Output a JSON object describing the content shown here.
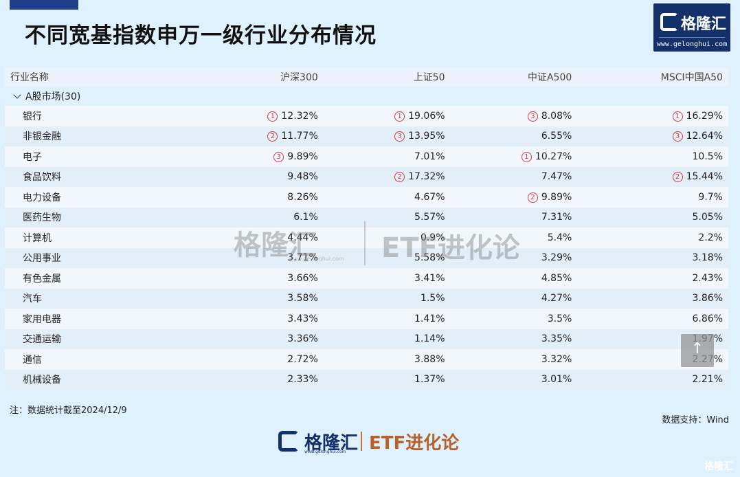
{
  "title": "不同宽基指数申万一级行业分布情况",
  "logo": {
    "name": "格隆汇",
    "url": "www.gelonghui.com"
  },
  "table": {
    "headers": [
      "行业名称",
      "沪深300",
      "上证50",
      "中证A500",
      "MSCI中国A50"
    ],
    "group": "A股市场(30)",
    "rows": [
      {
        "name": "银行",
        "cells": [
          {
            "rank": "1",
            "value": "12.32%"
          },
          {
            "rank": "1",
            "value": "19.06%"
          },
          {
            "rank": "3",
            "value": "8.08%"
          },
          {
            "rank": "1",
            "value": "16.29%"
          }
        ]
      },
      {
        "name": "非银金融",
        "cells": [
          {
            "rank": "2",
            "value": "11.77%"
          },
          {
            "rank": "3",
            "value": "13.95%"
          },
          {
            "rank": "",
            "value": "6.55%"
          },
          {
            "rank": "3",
            "value": "12.64%"
          }
        ]
      },
      {
        "name": "电子",
        "cells": [
          {
            "rank": "3",
            "value": "9.89%"
          },
          {
            "rank": "",
            "value": "7.01%"
          },
          {
            "rank": "1",
            "value": "10.27%"
          },
          {
            "rank": "",
            "value": "10.5%"
          }
        ]
      },
      {
        "name": "食品饮料",
        "cells": [
          {
            "rank": "",
            "value": "9.48%"
          },
          {
            "rank": "2",
            "value": "17.32%"
          },
          {
            "rank": "",
            "value": "7.47%"
          },
          {
            "rank": "2",
            "value": "15.44%"
          }
        ]
      },
      {
        "name": "电力设备",
        "cells": [
          {
            "rank": "",
            "value": "8.26%"
          },
          {
            "rank": "",
            "value": "4.67%"
          },
          {
            "rank": "2",
            "value": "9.89%"
          },
          {
            "rank": "",
            "value": "9.7%"
          }
        ]
      },
      {
        "name": "医药生物",
        "cells": [
          {
            "rank": "",
            "value": "6.1%"
          },
          {
            "rank": "",
            "value": "5.57%"
          },
          {
            "rank": "",
            "value": "7.31%"
          },
          {
            "rank": "",
            "value": "5.05%"
          }
        ]
      },
      {
        "name": "计算机",
        "cells": [
          {
            "rank": "",
            "value": "4.44%"
          },
          {
            "rank": "",
            "value": "0.9%"
          },
          {
            "rank": "",
            "value": "5.4%"
          },
          {
            "rank": "",
            "value": "2.2%"
          }
        ]
      },
      {
        "name": "公用事业",
        "cells": [
          {
            "rank": "",
            "value": "3.71%"
          },
          {
            "rank": "",
            "value": "5.58%"
          },
          {
            "rank": "",
            "value": "3.29%"
          },
          {
            "rank": "",
            "value": "3.18%"
          }
        ]
      },
      {
        "name": "有色金属",
        "cells": [
          {
            "rank": "",
            "value": "3.66%"
          },
          {
            "rank": "",
            "value": "3.41%"
          },
          {
            "rank": "",
            "value": "4.85%"
          },
          {
            "rank": "",
            "value": "2.43%"
          }
        ]
      },
      {
        "name": "汽车",
        "cells": [
          {
            "rank": "",
            "value": "3.58%"
          },
          {
            "rank": "",
            "value": "1.5%"
          },
          {
            "rank": "",
            "value": "4.27%"
          },
          {
            "rank": "",
            "value": "3.86%"
          }
        ]
      },
      {
        "name": "家用电器",
        "cells": [
          {
            "rank": "",
            "value": "3.43%"
          },
          {
            "rank": "",
            "value": "1.41%"
          },
          {
            "rank": "",
            "value": "3.5%"
          },
          {
            "rank": "",
            "value": "6.86%"
          }
        ]
      },
      {
        "name": "交通运输",
        "cells": [
          {
            "rank": "",
            "value": "3.36%"
          },
          {
            "rank": "",
            "value": "1.14%"
          },
          {
            "rank": "",
            "value": "3.35%"
          },
          {
            "rank": "",
            "value": "1.97%"
          }
        ]
      },
      {
        "name": "通信",
        "cells": [
          {
            "rank": "",
            "value": "2.72%"
          },
          {
            "rank": "",
            "value": "3.88%"
          },
          {
            "rank": "",
            "value": "3.32%"
          },
          {
            "rank": "",
            "value": "2.27%"
          }
        ]
      },
      {
        "name": "机械设备",
        "cells": [
          {
            "rank": "",
            "value": "2.33%"
          },
          {
            "rank": "",
            "value": "1.37%"
          },
          {
            "rank": "",
            "value": "3.01%"
          },
          {
            "rank": "",
            "value": "2.21%"
          }
        ]
      }
    ]
  },
  "watermark": {
    "brand": "格隆汇",
    "url": "www.gelonghui.com",
    "column": "ETF进化论"
  },
  "note": "注：数据统计截至2024/12/9",
  "source": "数据支持：Wind",
  "footer_logo": {
    "brand": "格隆汇",
    "url": "www.gelonghui.com",
    "column": "ETF进化论"
  },
  "scroll_top_icon": "arrow-up-icon",
  "corner_watermark": "格隆汇",
  "colors": {
    "rank": "#d23a3a",
    "logo_bg": "#14306b",
    "etf": "#b8612a",
    "page_bg": "#dff1fc"
  }
}
